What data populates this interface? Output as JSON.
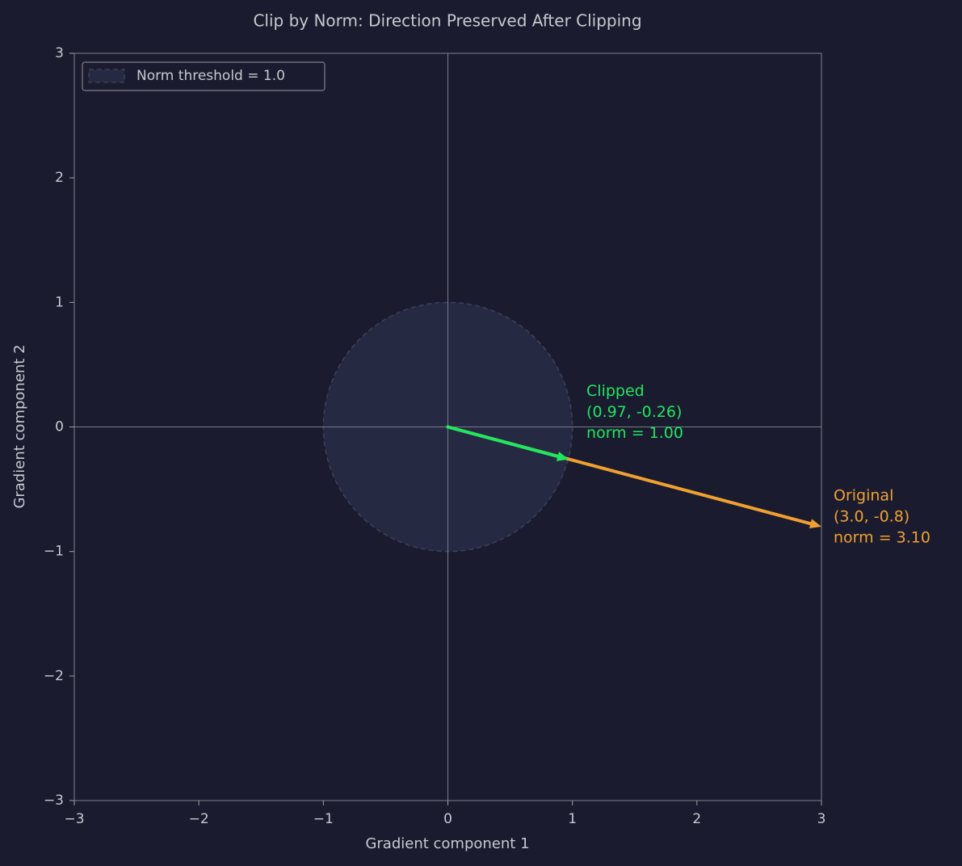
{
  "chart_data": {
    "type": "quiver",
    "title": "Clip by Norm: Direction Preserved After Clipping",
    "xlabel": "Gradient component 1",
    "ylabel": "Gradient component 2",
    "xlim": [
      -3,
      3
    ],
    "ylim": [
      -3,
      3
    ],
    "xticks": [
      {
        "value": -3,
        "label": "−3"
      },
      {
        "value": -2,
        "label": "−2"
      },
      {
        "value": -1,
        "label": "−1"
      },
      0,
      1,
      2,
      3
    ],
    "yticks": [
      {
        "value": -3,
        "label": "−3"
      },
      {
        "value": -2,
        "label": "−2"
      },
      {
        "value": -1,
        "label": "−1"
      },
      0,
      1,
      2,
      3
    ],
    "hlines": [
      0
    ],
    "vlines": [
      0
    ],
    "circle": {
      "label": "Norm threshold = 1.0",
      "radius": 1.0,
      "color": "#252a42"
    },
    "legend": "upper left",
    "vectors": [
      {
        "name": "Original",
        "color": "#f0a030",
        "x": 3.0,
        "y": -0.8,
        "annotation": [
          "Original",
          "(3.0, -0.8)",
          "norm = 3.10"
        ]
      },
      {
        "name": "Clipped",
        "color": "#1ee860",
        "x": 0.97,
        "y": -0.26,
        "annotation": [
          "Clipped",
          "(0.97, -0.26)",
          "norm = 1.00"
        ]
      }
    ]
  }
}
